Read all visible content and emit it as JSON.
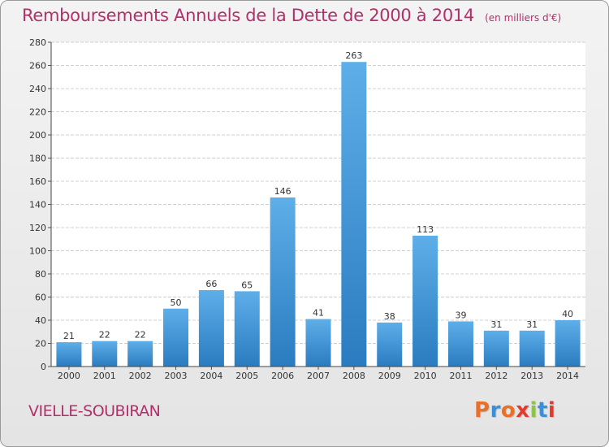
{
  "header": {
    "title": "Remboursements Annuels de la Dette de 2000 à 2014",
    "subtitle": "(en milliers d'€)"
  },
  "footer": {
    "place": "VIELLE-SOUBIRAN",
    "logo_text": "Proxiti"
  },
  "colors": {
    "title": "#b0316a",
    "bar_light": "#5eaee8",
    "bar_dark": "#2a7cc0",
    "logo_letters": [
      "#e8702a",
      "#3a8fd8",
      "#e8702a",
      "#e23b2e",
      "#8cc63f",
      "#3a8fd8",
      "#e23b2e"
    ]
  },
  "chart_data": {
    "type": "bar",
    "title": "Remboursements Annuels de la Dette de 2000 à 2014",
    "subtitle": "(en milliers d'€)",
    "categories": [
      "2000",
      "2001",
      "2002",
      "2003",
      "2004",
      "2005",
      "2006",
      "2007",
      "2008",
      "2009",
      "2010",
      "2011",
      "2012",
      "2013",
      "2014"
    ],
    "values": [
      21,
      22,
      22,
      50,
      66,
      65,
      146,
      41,
      263,
      38,
      113,
      39,
      31,
      31,
      40
    ],
    "data_labels": [
      "21",
      "22",
      "22",
      "50",
      "66",
      "65",
      "146",
      "41",
      "263",
      "38",
      "113",
      "39",
      "31",
      "31",
      "40"
    ],
    "ylim": [
      0,
      280
    ],
    "yticks": [
      0,
      20,
      40,
      60,
      80,
      100,
      120,
      140,
      160,
      180,
      200,
      220,
      240,
      260,
      280
    ],
    "grid": true,
    "xlabel": "",
    "ylabel": ""
  }
}
